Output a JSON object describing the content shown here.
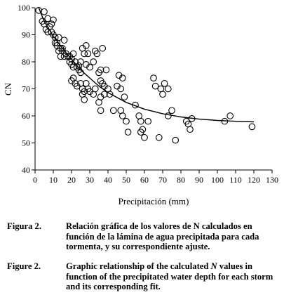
{
  "chart_data": {
    "type": "scatter",
    "xlabel": "Precipitación (mm)",
    "ylabel": "CN",
    "xlim": [
      0,
      130
    ],
    "ylim": [
      40,
      100
    ],
    "xticks": [
      0,
      10,
      20,
      30,
      40,
      50,
      60,
      70,
      80,
      90,
      100,
      110,
      120,
      130
    ],
    "yticks": [
      40,
      50,
      60,
      70,
      80,
      90,
      100
    ],
    "grid": false,
    "legend": "none",
    "series": [
      {
        "marker": "open-circle",
        "points": [
          [
            2,
            99
          ],
          [
            5,
            98.5
          ],
          [
            4,
            95
          ],
          [
            5,
            94
          ],
          [
            7,
            96
          ],
          [
            8,
            93
          ],
          [
            9,
            94
          ],
          [
            10,
            95.5
          ],
          [
            6,
            92
          ],
          [
            7,
            91
          ],
          [
            9,
            91
          ],
          [
            10,
            90
          ],
          [
            11,
            89
          ],
          [
            11,
            87
          ],
          [
            12,
            87
          ],
          [
            13,
            89
          ],
          [
            12,
            86
          ],
          [
            14,
            85
          ],
          [
            13,
            84
          ],
          [
            15,
            85
          ],
          [
            16,
            88
          ],
          [
            15,
            84
          ],
          [
            16,
            82
          ],
          [
            17,
            83
          ],
          [
            14,
            82
          ],
          [
            18,
            82
          ],
          [
            19,
            82
          ],
          [
            20,
            81
          ],
          [
            19,
            80
          ],
          [
            21,
            83
          ],
          [
            20,
            79
          ],
          [
            21,
            78
          ],
          [
            22,
            80
          ],
          [
            23,
            78
          ],
          [
            24,
            77
          ],
          [
            24,
            78.5
          ],
          [
            25,
            80
          ],
          [
            26,
            85
          ],
          [
            27,
            83
          ],
          [
            28,
            86
          ],
          [
            29,
            83
          ],
          [
            28,
            79
          ],
          [
            30,
            78
          ],
          [
            25,
            76
          ],
          [
            33,
            84
          ],
          [
            32,
            80
          ],
          [
            34,
            83
          ],
          [
            35,
            76
          ],
          [
            36,
            77
          ],
          [
            37,
            85
          ],
          [
            36,
            73
          ],
          [
            37,
            72
          ],
          [
            38,
            71
          ],
          [
            36,
            67
          ],
          [
            35,
            65
          ],
          [
            36,
            62
          ],
          [
            38,
            68
          ],
          [
            40,
            70
          ],
          [
            39,
            77
          ],
          [
            41,
            68
          ],
          [
            20,
            73
          ],
          [
            21,
            74
          ],
          [
            22,
            72
          ],
          [
            23,
            71
          ],
          [
            25,
            72
          ],
          [
            26,
            70
          ],
          [
            27,
            69
          ],
          [
            28,
            72
          ],
          [
            29,
            70
          ],
          [
            26,
            68
          ],
          [
            27,
            66
          ],
          [
            30,
            69
          ],
          [
            32,
            68
          ],
          [
            33,
            70
          ],
          [
            43,
            62
          ],
          [
            45,
            71
          ],
          [
            46,
            75
          ],
          [
            47,
            70
          ],
          [
            48,
            74
          ],
          [
            49,
            67
          ],
          [
            47,
            62
          ],
          [
            48,
            60
          ],
          [
            50,
            58
          ],
          [
            51,
            54
          ],
          [
            55,
            64
          ],
          [
            57,
            60
          ],
          [
            58,
            58
          ],
          [
            58,
            54
          ],
          [
            60,
            52
          ],
          [
            59,
            55
          ],
          [
            62,
            58
          ],
          [
            65,
            74
          ],
          [
            66,
            71
          ],
          [
            69,
            70
          ],
          [
            70,
            68
          ],
          [
            71,
            72
          ],
          [
            73,
            70
          ],
          [
            68,
            52
          ],
          [
            77,
            51
          ],
          [
            75,
            62
          ],
          [
            73,
            60
          ],
          [
            83,
            58
          ],
          [
            84,
            57
          ],
          [
            85,
            55
          ],
          [
            86,
            59
          ],
          [
            104,
            58
          ],
          [
            107,
            60
          ],
          [
            119,
            56
          ]
        ]
      },
      {
        "type": "line",
        "points": [
          [
            2,
            100
          ],
          [
            5,
            95
          ],
          [
            10,
            89.5
          ],
          [
            15,
            85
          ],
          [
            20,
            81
          ],
          [
            25,
            77
          ],
          [
            30,
            74
          ],
          [
            35,
            71
          ],
          [
            40,
            68.6
          ],
          [
            50,
            65
          ],
          [
            60,
            62.5
          ],
          [
            70,
            60.8
          ],
          [
            80,
            59.6
          ],
          [
            90,
            58.8
          ],
          [
            100,
            58.3
          ],
          [
            110,
            58
          ],
          [
            120,
            57.8
          ]
        ]
      }
    ]
  },
  "caption_es": {
    "label": "Figura 2.",
    "text": "Relación gráfica de los valores de N calculados en función de la lámina de agua precipitada para cada tormenta, y su correspondiente ajuste."
  },
  "caption_en": {
    "label": "Figure 2.",
    "text_before": "Graphic relationship of the calculated ",
    "italic": "N",
    "text_after": " values in function of the precipitated water depth for each storm and its corresponding fit."
  }
}
